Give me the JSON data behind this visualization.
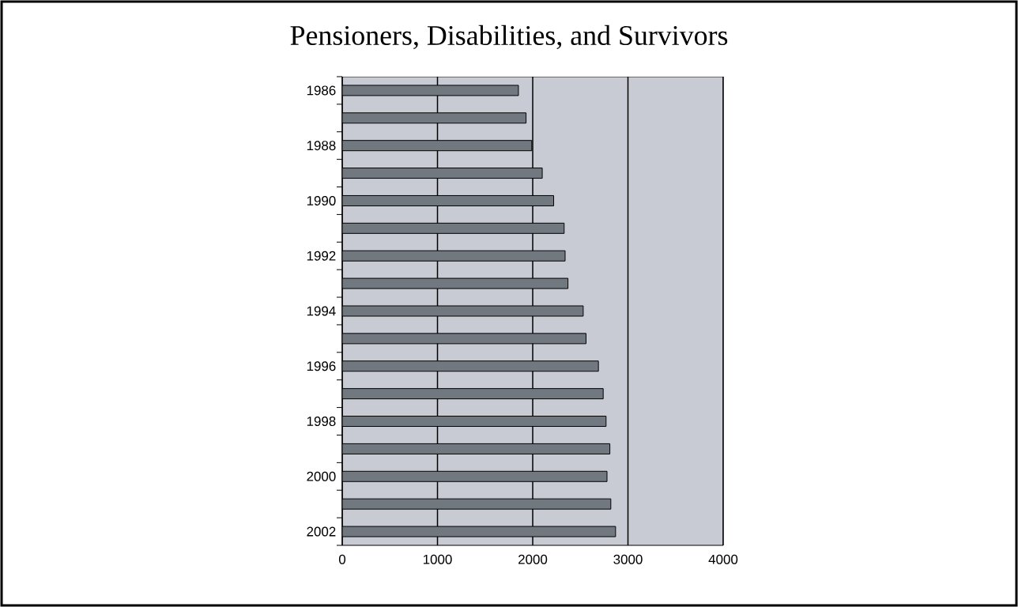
{
  "chart_data": {
    "type": "bar",
    "orientation": "horizontal",
    "title": "Pensioners, Disabilities, and Survivors",
    "categories": [
      "1986",
      null,
      "1988",
      null,
      "1990",
      null,
      "1992",
      null,
      "1994",
      null,
      "1996",
      null,
      "1998",
      null,
      "2000",
      null,
      "2002"
    ],
    "values": [
      1850,
      1930,
      1990,
      2100,
      2220,
      2330,
      2340,
      2370,
      2530,
      2560,
      2690,
      2740,
      2770,
      2810,
      2780,
      2820,
      2870
    ],
    "color": "#717880",
    "xlim": [
      0,
      4000
    ],
    "xticks": [
      0,
      1000,
      2000,
      3000,
      4000
    ],
    "grid": "x"
  }
}
